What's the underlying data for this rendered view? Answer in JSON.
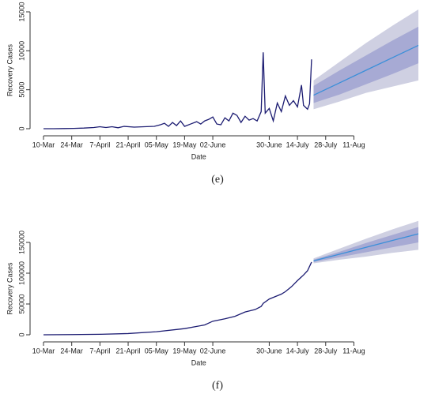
{
  "chart_data": [
    {
      "type": "line",
      "caption": "(e)",
      "xlabel": "Date",
      "ylabel": "Recovery Cases",
      "xlim": [
        0,
        186
      ],
      "ylim": [
        0,
        15000
      ],
      "yticks": [
        0,
        5000,
        10000,
        15000
      ],
      "xticks": [
        {
          "value": 0,
          "label": "10-Mar"
        },
        {
          "value": 14,
          "label": "24-Mar"
        },
        {
          "value": 28,
          "label": "7-April"
        },
        {
          "value": 42,
          "label": "21-April"
        },
        {
          "value": 56,
          "label": "05-May"
        },
        {
          "value": 70,
          "label": "19-May"
        },
        {
          "value": 84,
          "label": "02-June"
        },
        {
          "value": 112,
          "label": "30-June"
        },
        {
          "value": 126,
          "label": "14-July"
        },
        {
          "value": 140,
          "label": "28-July"
        },
        {
          "value": 154,
          "label": "11-Aug"
        }
      ],
      "bands": [
        {
          "color": "#cfd0e2",
          "x": [
            134,
            147,
            160,
            173,
            186
          ],
          "lower": [
            2500,
            3500,
            4600,
            5400,
            6200
          ],
          "upper": [
            6200,
            8600,
            11000,
            13200,
            15300
          ]
        },
        {
          "color": "#a7aad4",
          "x": [
            134,
            147,
            160,
            173,
            186
          ],
          "lower": [
            3300,
            4400,
            5700,
            7000,
            8400
          ],
          "upper": [
            5500,
            7500,
            9400,
            11300,
            13100
          ]
        }
      ],
      "series": [
        {
          "color": "#1c1c72",
          "x": [
            0,
            5,
            10,
            15,
            20,
            25,
            28,
            31,
            34,
            37,
            40,
            45,
            50,
            55,
            58,
            60,
            62,
            64,
            66,
            68,
            70,
            73,
            76,
            78,
            80,
            82,
            84,
            86,
            88,
            90,
            92,
            94,
            96,
            98,
            100,
            102,
            104,
            106,
            108,
            109,
            110,
            112,
            114,
            116,
            118,
            120,
            122,
            124,
            126,
            128,
            129,
            131,
            132,
            133
          ],
          "values": [
            0,
            0,
            20,
            40,
            80,
            150,
            250,
            150,
            250,
            120,
            300,
            200,
            250,
            300,
            500,
            700,
            300,
            800,
            400,
            1000,
            300,
            600,
            900,
            600,
            1000,
            1200,
            1500,
            600,
            500,
            1400,
            1000,
            2000,
            1700,
            800,
            1600,
            1100,
            1300,
            1000,
            2200,
            9800,
            2000,
            2600,
            1000,
            3300,
            2200,
            4200,
            3000,
            3600,
            2800,
            5600,
            3000,
            2500,
            3200,
            8900
          ]
        },
        {
          "color": "#3a8fd9",
          "x": [
            134,
            147,
            160,
            173,
            186
          ],
          "values": [
            4300,
            5900,
            7500,
            9100,
            10700
          ]
        }
      ]
    },
    {
      "type": "line",
      "caption": "(f)",
      "xlabel": "Date",
      "ylabel": "Recovery Cases",
      "xlim": [
        0,
        186
      ],
      "ylim": [
        0,
        150000
      ],
      "yticks": [
        0,
        50000,
        100000,
        150000
      ],
      "xticks": [
        {
          "value": 0,
          "label": "10-Mar"
        },
        {
          "value": 14,
          "label": "24-Mar"
        },
        {
          "value": 28,
          "label": "7-April"
        },
        {
          "value": 42,
          "label": "21-April"
        },
        {
          "value": 56,
          "label": "05-May"
        },
        {
          "value": 70,
          "label": "19-May"
        },
        {
          "value": 84,
          "label": "02-June"
        },
        {
          "value": 112,
          "label": "30-June"
        },
        {
          "value": 126,
          "label": "14-July"
        },
        {
          "value": 140,
          "label": "28-July"
        },
        {
          "value": 154,
          "label": "11-Aug"
        }
      ],
      "bands": [
        {
          "color": "#cfd0e2",
          "x": [
            134,
            147,
            160,
            173,
            186
          ],
          "lower": [
            116000,
            122000,
            127000,
            133000,
            138000
          ],
          "upper": [
            124000,
            140000,
            156000,
            171000,
            185000
          ]
        },
        {
          "color": "#a7aad4",
          "x": [
            134,
            147,
            160,
            173,
            186
          ],
          "lower": [
            118000,
            126000,
            134000,
            142000,
            150000
          ],
          "upper": [
            122000,
            135000,
            149000,
            162000,
            175000
          ]
        }
      ],
      "series": [
        {
          "color": "#1c1c72",
          "x": [
            0,
            14,
            28,
            42,
            56,
            70,
            80,
            84,
            90,
            95,
            100,
            105,
            108,
            109,
            112,
            115,
            118,
            120,
            123,
            126,
            129,
            131,
            133
          ],
          "values": [
            0,
            300,
            800,
            2000,
            5000,
            10000,
            16000,
            22000,
            26000,
            30000,
            37000,
            41000,
            46000,
            51000,
            58000,
            62000,
            66000,
            70000,
            78000,
            88000,
            97000,
            104000,
            118000
          ]
        },
        {
          "color": "#3a8fd9",
          "x": [
            134,
            147,
            160,
            173,
            186
          ],
          "values": [
            120000,
            131000,
            142000,
            153000,
            164000
          ]
        }
      ]
    }
  ]
}
